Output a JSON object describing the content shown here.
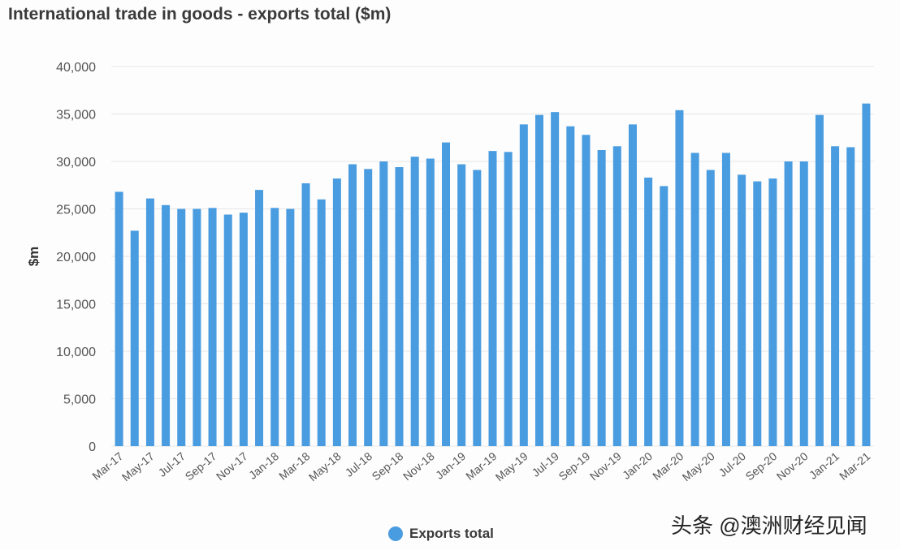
{
  "chart_data": {
    "type": "bar",
    "title": "International trade in goods - exports total ($m)",
    "xlabel": "",
    "ylabel": "$m",
    "ylim": [
      0,
      40000
    ],
    "yticks": [
      0,
      5000,
      10000,
      15000,
      20000,
      25000,
      30000,
      35000,
      40000
    ],
    "ytick_labels": [
      "0",
      "5,000",
      "10,000",
      "15,000",
      "20,000",
      "25,000",
      "30,000",
      "35,000",
      "40,000"
    ],
    "grid": true,
    "legend_position": "bottom",
    "color": "#4a9ce0",
    "categories": [
      "Mar-17",
      "Apr-17",
      "May-17",
      "Jun-17",
      "Jul-17",
      "Aug-17",
      "Sep-17",
      "Oct-17",
      "Nov-17",
      "Dec-17",
      "Jan-18",
      "Feb-18",
      "Mar-18",
      "Apr-18",
      "May-18",
      "Jun-18",
      "Jul-18",
      "Aug-18",
      "Sep-18",
      "Oct-18",
      "Nov-18",
      "Dec-18",
      "Jan-19",
      "Feb-19",
      "Mar-19",
      "Apr-19",
      "May-19",
      "Jun-19",
      "Jul-19",
      "Aug-19",
      "Sep-19",
      "Oct-19",
      "Nov-19",
      "Dec-19",
      "Jan-20",
      "Feb-20",
      "Mar-20",
      "Apr-20",
      "May-20",
      "Jun-20",
      "Jul-20",
      "Aug-20",
      "Sep-20",
      "Oct-20",
      "Nov-20",
      "Dec-20",
      "Jan-21",
      "Feb-21",
      "Mar-21"
    ],
    "series": [
      {
        "name": "Exports total",
        "values": [
          26800,
          22700,
          26100,
          25400,
          25000,
          25000,
          25100,
          24400,
          24600,
          27000,
          25100,
          25000,
          27700,
          26000,
          28200,
          29700,
          29200,
          30000,
          29400,
          30500,
          30300,
          32000,
          29700,
          29100,
          31100,
          31000,
          33900,
          34900,
          35200,
          33700,
          32800,
          31200,
          31600,
          33900,
          28300,
          27400,
          35400,
          30900,
          29100,
          30900,
          28600,
          27900,
          28200,
          30000,
          30000,
          34900,
          31600,
          31500,
          36100
        ]
      }
    ]
  },
  "watermark": "头条 @澳洲财经见闻"
}
